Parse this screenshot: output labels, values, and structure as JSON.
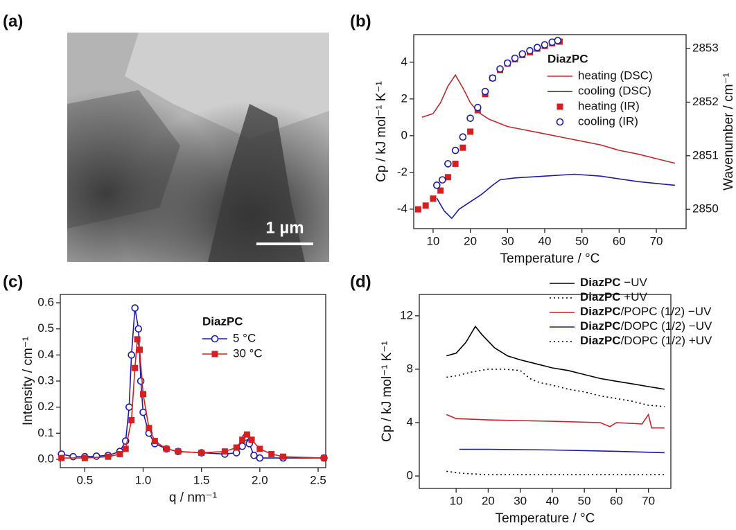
{
  "chart_data": [
    {
      "type": "image",
      "panel_label": "(a)",
      "scale_bar": "1 µm"
    },
    {
      "type": "line",
      "panel_label": "(b)",
      "xlabel": "Temperature / °C",
      "ylabel": "Cp / kJ mol⁻¹ K⁻¹",
      "y2label": "Wavenumber / cm⁻¹",
      "xlim": [
        4.8,
        78
      ],
      "xticks": [
        10,
        20,
        30,
        40,
        50,
        60,
        70
      ],
      "ylim": [
        -5.06,
        5.5
      ],
      "yticks": [
        -4,
        -2,
        0,
        2,
        4
      ],
      "y2lim": [
        2849.64,
        2853.26
      ],
      "y2ticks": [
        2850,
        2851,
        2852,
        2853
      ],
      "legend": "upper right",
      "legend_title": "DiazPC",
      "series": [
        {
          "name": "heating (DSC)",
          "color": "#c0282a",
          "line": true,
          "x": [
            7,
            10,
            12,
            14,
            16,
            18,
            20,
            22,
            25,
            30,
            35,
            40,
            45,
            50,
            55,
            60,
            65,
            70,
            75
          ],
          "values": [
            1.0,
            1.2,
            1.8,
            2.7,
            3.3,
            2.6,
            1.8,
            1.3,
            0.9,
            0.5,
            0.3,
            0.1,
            -0.1,
            -0.3,
            -0.5,
            -0.8,
            -1.0,
            -1.25,
            -1.5
          ]
        },
        {
          "name": "cooling (DSC)",
          "color": "#1c1ca0",
          "line": true,
          "x": [
            11,
            13,
            15,
            17,
            20,
            23,
            26,
            28,
            32,
            40,
            48,
            55,
            65,
            70,
            75
          ],
          "values": [
            -3.4,
            -4.1,
            -4.5,
            -4.0,
            -3.6,
            -3.2,
            -2.7,
            -2.4,
            -2.3,
            -2.2,
            -2.1,
            -2.2,
            -2.5,
            -2.6,
            -2.7
          ]
        },
        {
          "name": "heating (IR)",
          "color": "#d42020",
          "line": false,
          "marker": "square",
          "axis": "y2",
          "x": [
            6,
            8,
            10,
            12,
            14,
            16,
            18,
            20,
            22,
            24,
            26,
            28,
            30,
            32,
            34,
            36,
            38,
            40,
            42,
            44
          ],
          "values": [
            2850.0,
            2850.07,
            2850.2,
            2850.35,
            2850.6,
            2850.85,
            2851.15,
            2851.45,
            2851.85,
            2852.15,
            2852.45,
            2852.6,
            2852.72,
            2852.8,
            2852.88,
            2852.93,
            2853.0,
            2853.05,
            2853.1,
            2853.13
          ]
        },
        {
          "name": "cooling (IR)",
          "color": "#1c1ca0",
          "line": false,
          "marker": "open-circle",
          "axis": "y2",
          "x": [
            11,
            12.5,
            14,
            16,
            18,
            20,
            22,
            24,
            26,
            28,
            30,
            32,
            34,
            36,
            38,
            40,
            42,
            43.5
          ],
          "values": [
            2850.45,
            2850.55,
            2850.85,
            2851.1,
            2851.35,
            2851.7,
            2851.9,
            2852.2,
            2852.45,
            2852.62,
            2852.73,
            2852.82,
            2852.9,
            2852.96,
            2853.02,
            2853.07,
            2853.12,
            2853.15
          ]
        }
      ]
    },
    {
      "type": "line",
      "panel_label": "(c)",
      "xlabel": "q / nm⁻¹",
      "ylabel": "Intensity / cm⁻¹",
      "xlim": [
        0.29,
        2.565
      ],
      "xticks": [
        0.5,
        {
          "value": 1,
          "label": "1.0"
        },
        1.5,
        {
          "value": 2,
          "label": "2.0"
        },
        2.5
      ],
      "ylim": [
        -0.032,
        0.632
      ],
      "yticks": [
        {
          "value": 0,
          "label": "0.0"
        },
        0.1,
        0.2,
        0.3,
        0.4,
        0.5,
        0.6
      ],
      "legend": "upper center",
      "legend_title": "DiazPC",
      "series": [
        {
          "name": "5 °C",
          "color": "#1c1ca0",
          "line": true,
          "marker": "open-circle",
          "x": [
            0.3,
            0.4,
            0.5,
            0.6,
            0.7,
            0.8,
            0.85,
            0.88,
            0.9,
            0.93,
            0.96,
            0.98,
            1.0,
            1.05,
            1.1,
            1.2,
            1.3,
            1.5,
            1.7,
            1.8,
            1.85,
            1.88,
            1.91,
            1.95,
            2.0,
            2.2,
            2.55
          ],
          "values": [
            0.02,
            0.01,
            0.01,
            0.012,
            0.015,
            0.03,
            0.07,
            0.2,
            0.4,
            0.58,
            0.5,
            0.3,
            0.18,
            0.1,
            0.06,
            0.04,
            0.03,
            0.025,
            0.02,
            0.025,
            0.05,
            0.085,
            0.06,
            0.015,
            0.005,
            0.005,
            0.005
          ]
        },
        {
          "name": "30 °C",
          "color": "#d42020",
          "line": true,
          "marker": "square",
          "x": [
            0.3,
            0.5,
            0.7,
            0.8,
            0.85,
            0.9,
            0.93,
            0.95,
            0.97,
            1.0,
            1.05,
            1.1,
            1.2,
            1.3,
            1.5,
            1.7,
            1.8,
            1.85,
            1.89,
            1.93,
            2.0,
            2.1,
            2.2,
            2.55
          ],
          "values": [
            0.005,
            0.005,
            0.01,
            0.02,
            0.04,
            0.15,
            0.35,
            0.46,
            0.42,
            0.25,
            0.12,
            0.07,
            0.04,
            0.03,
            0.025,
            0.03,
            0.045,
            0.075,
            0.095,
            0.075,
            0.04,
            0.02,
            0.01,
            0.005
          ]
        }
      ]
    },
    {
      "type": "line",
      "panel_label": "(d)",
      "xlabel": "Temperature / °C",
      "ylabel": "Cp / kJ mol⁻¹ K⁻¹",
      "xlim": [
        -1.5,
        77
      ],
      "xticks": [
        10,
        20,
        30,
        40,
        50,
        60,
        70
      ],
      "ylim": [
        -0.93,
        13.6
      ],
      "yticks": [
        0,
        4,
        8,
        12
      ],
      "legend": "above right",
      "legend_bold_prefix": true,
      "series": [
        {
          "name": "DiazPC −UV",
          "color": "#000000",
          "line": true,
          "x": [
            7,
            10,
            13,
            16,
            18,
            22,
            26,
            30,
            35,
            40,
            45,
            50,
            55,
            60,
            65,
            70,
            75
          ],
          "values": [
            9.0,
            9.2,
            10.0,
            11.2,
            10.6,
            9.6,
            9.0,
            8.7,
            8.4,
            8.1,
            7.9,
            7.6,
            7.3,
            7.1,
            6.9,
            6.7,
            6.5
          ]
        },
        {
          "name": "DiazPC +UV",
          "color": "#000000",
          "line": true,
          "dash": "dotted",
          "x": [
            7,
            10,
            15,
            20,
            25,
            30,
            33,
            36,
            40,
            45,
            50,
            55,
            60,
            65,
            70,
            75
          ],
          "values": [
            7.4,
            7.5,
            7.8,
            8.0,
            8.0,
            7.9,
            7.3,
            7.0,
            6.8,
            6.5,
            6.3,
            6.0,
            5.8,
            5.6,
            5.3,
            5.2
          ]
        },
        {
          "name": "DiazPC/POPC (1/2) −UV",
          "color": "#c8202a",
          "line": true,
          "x": [
            7,
            10,
            20,
            40,
            55,
            58,
            60,
            68,
            70,
            71,
            75
          ],
          "values": [
            4.6,
            4.3,
            4.2,
            4.1,
            4.0,
            3.7,
            4.0,
            3.9,
            4.6,
            3.6,
            3.6
          ]
        },
        {
          "name": "DiazPC/DOPC (1/2) −UV",
          "color": "#1a1a9c",
          "line": true,
          "x": [
            11,
            20,
            40,
            60,
            75
          ],
          "values": [
            2.0,
            2.0,
            1.95,
            1.85,
            1.75
          ]
        },
        {
          "name": "DiazPC/DOPC (1/2) +UV",
          "color": "#000000",
          "line": true,
          "dash": "dotted",
          "x": [
            7,
            12,
            20,
            40,
            75
          ],
          "values": [
            0.35,
            0.2,
            0.1,
            0.1,
            0.1
          ]
        }
      ]
    }
  ]
}
